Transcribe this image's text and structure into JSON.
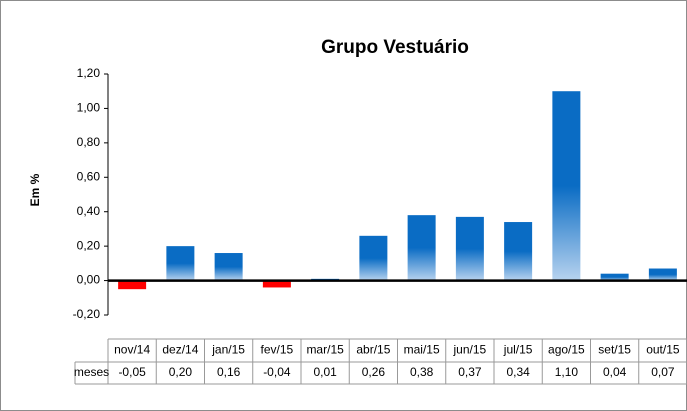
{
  "chart_data": {
    "type": "bar",
    "title": "Grupo Vestuário",
    "y_label": "Em %",
    "series_name": "meses",
    "categories": [
      "nov/14",
      "dez/14",
      "jan/15",
      "fev/15",
      "mar/15",
      "abr/15",
      "mai/15",
      "jun/15",
      "jul/15",
      "ago/15",
      "set/15",
      "out/15"
    ],
    "values": [
      -0.05,
      0.2,
      0.16,
      -0.04,
      0.01,
      0.26,
      0.38,
      0.37,
      0.34,
      1.1,
      0.04,
      0.07
    ],
    "value_labels": [
      "-0,05",
      "0,20",
      "0,16",
      "-0,04",
      "0,01",
      "0,26",
      "0,38",
      "0,37",
      "0,34",
      "1,10",
      "0,04",
      "0,07"
    ],
    "color": "#0a6cc4",
    "negative_color": "#ff0000",
    "ylim": [
      -0.2,
      1.2
    ],
    "yticks": [
      {
        "value": -0.2,
        "label": "-0,20"
      },
      {
        "value": 0,
        "label": "0,00"
      },
      {
        "value": 0.2,
        "label": "0,20"
      },
      {
        "value": 0.4,
        "label": "0,40"
      },
      {
        "value": 0.6,
        "label": "0,60"
      },
      {
        "value": 0.8,
        "label": "0,80"
      },
      {
        "value": 1.0,
        "label": "1,00"
      },
      {
        "value": 1.2,
        "label": "1,20"
      }
    ],
    "grid": false
  }
}
